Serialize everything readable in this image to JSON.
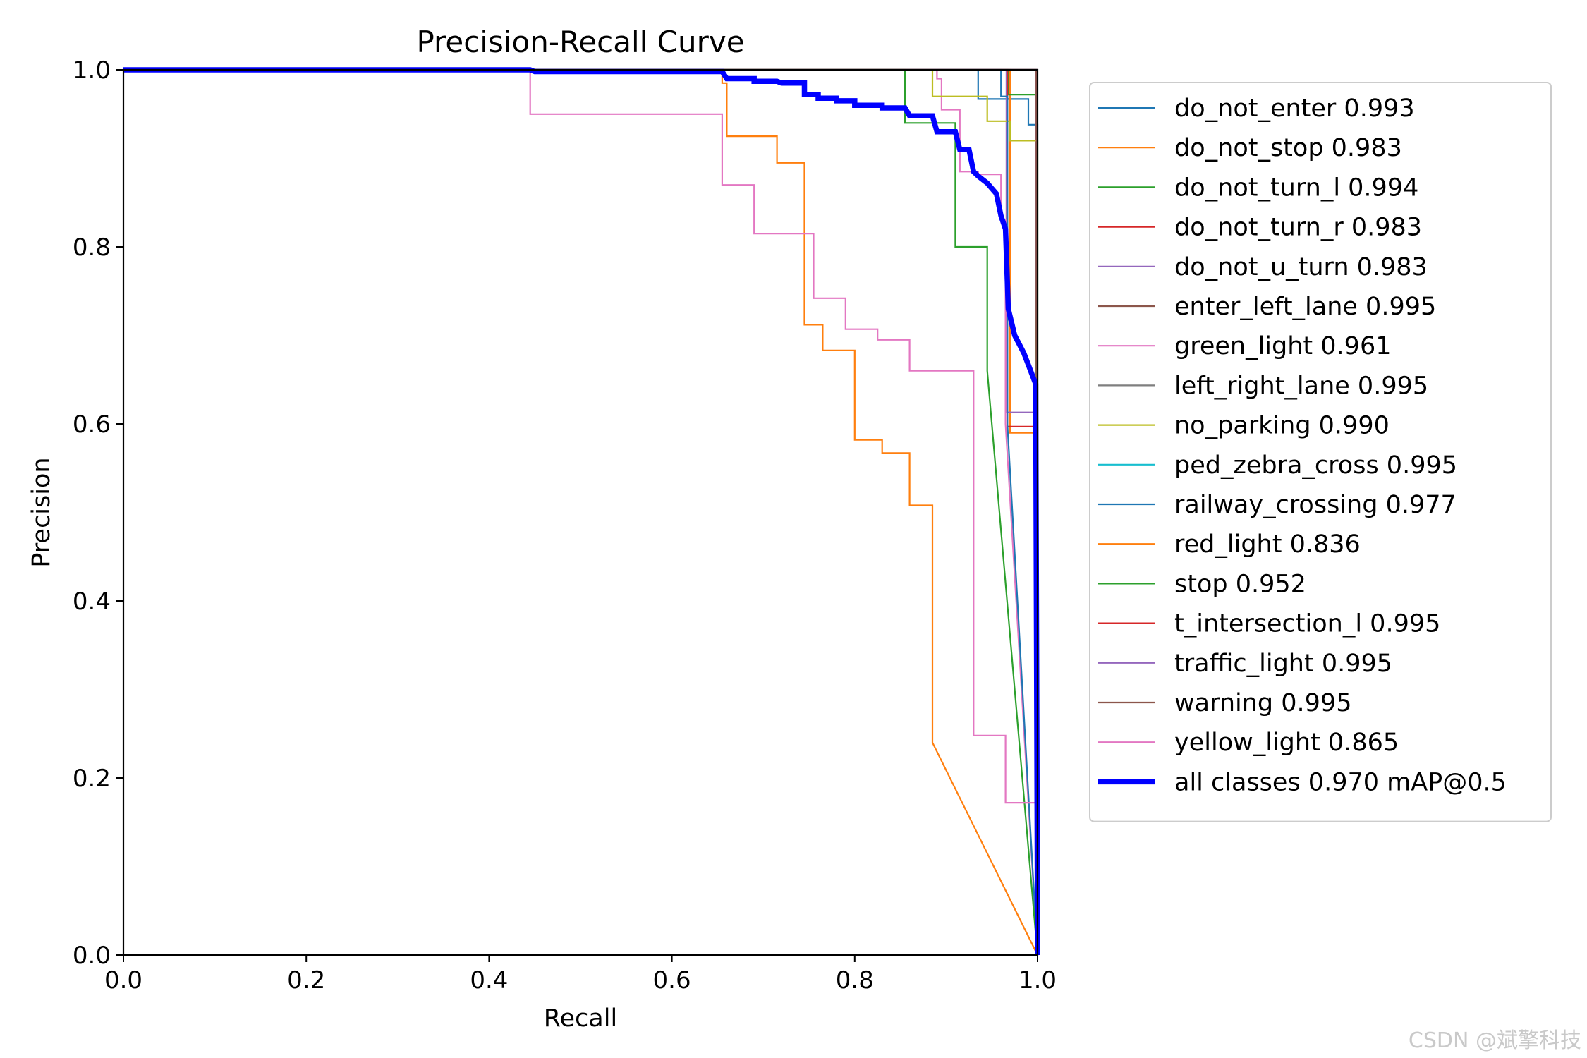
{
  "watermark": "CSDN @斌擎科技",
  "chart_data": {
    "type": "line",
    "title": "Precision-Recall Curve",
    "xlabel": "Recall",
    "ylabel": "Precision",
    "xlim": [
      0,
      1
    ],
    "ylim": [
      0,
      1
    ],
    "xticks": [
      "0.0",
      "0.2",
      "0.4",
      "0.6",
      "0.8",
      "1.0"
    ],
    "yticks": [
      "0.0",
      "0.2",
      "0.4",
      "0.6",
      "0.8",
      "1.0"
    ],
    "legend_position": "outside-right",
    "series": [
      {
        "name": "do_not_enter 0.993",
        "color": "#1f77b4",
        "x": [
          0,
          0.93,
          0.935,
          0.935,
          0.99,
          0.99,
          1.0,
          1.0
        ],
        "y": [
          1,
          1,
          1,
          0.967,
          0.967,
          0.938,
          0.938,
          0
        ]
      },
      {
        "name": "do_not_stop 0.983",
        "color": "#ff7f0e",
        "x": [
          0,
          0.97,
          0.97,
          0.999,
          0.999,
          1.0
        ],
        "y": [
          1,
          1,
          0.59,
          0.59,
          0.59,
          0
        ]
      },
      {
        "name": "do_not_turn_l 0.994",
        "color": "#2ca02c",
        "x": [
          0,
          0.968,
          0.968,
          0.998,
          0.998,
          1.0
        ],
        "y": [
          1,
          1,
          0.972,
          0.972,
          0.972,
          0
        ]
      },
      {
        "name": "do_not_turn_r 0.983",
        "color": "#d62728",
        "x": [
          0,
          0.967,
          0.967,
          0.999,
          0.999,
          1.0
        ],
        "y": [
          1,
          1,
          0.597,
          0.597,
          0.597,
          0
        ]
      },
      {
        "name": "do_not_u_turn 0.983",
        "color": "#9467bd",
        "x": [
          0,
          0.966,
          0.966,
          0.999,
          0.999,
          1.0
        ],
        "y": [
          1,
          1,
          0.613,
          0.613,
          0.613,
          0
        ]
      },
      {
        "name": "enter_left_lane 0.995",
        "color": "#8c564b",
        "x": [
          0,
          0.998,
          0.998,
          1.0
        ],
        "y": [
          1,
          1,
          1,
          0
        ]
      },
      {
        "name": "green_light 0.961",
        "color": "#e377c2",
        "x": [
          0,
          0.89,
          0.89,
          0.895,
          0.895,
          0.915,
          0.915,
          0.935,
          0.935,
          0.96,
          0.96,
          0.965,
          0.965,
          1.0
        ],
        "y": [
          1,
          1,
          0.99,
          0.99,
          0.955,
          0.955,
          0.885,
          0.885,
          0.882,
          0.882,
          0.83,
          0.83,
          0.6,
          0
        ]
      },
      {
        "name": "left_right_lane 0.995",
        "color": "#7f7f7f",
        "x": [
          0,
          0.999,
          0.999,
          1.0
        ],
        "y": [
          1,
          1,
          1,
          0
        ]
      },
      {
        "name": "no_parking 0.990",
        "color": "#bcbd22",
        "x": [
          0,
          0.885,
          0.885,
          0.94,
          0.94,
          0.945,
          0.945,
          0.97,
          0.97,
          1.0,
          1.0
        ],
        "y": [
          1,
          1,
          0.97,
          0.97,
          0.97,
          0.97,
          0.942,
          0.942,
          0.92,
          0.92,
          0
        ]
      },
      {
        "name": "ped_zebra_cross 0.995",
        "color": "#17becf",
        "x": [
          0,
          0.999,
          0.999,
          1.0
        ],
        "y": [
          1,
          1,
          1,
          0
        ]
      },
      {
        "name": "railway_crossing 0.977",
        "color": "#1f77b4",
        "x": [
          0,
          0.96,
          0.96,
          0.967,
          0.967,
          1.0
        ],
        "y": [
          1,
          1,
          0.97,
          0.97,
          0.6,
          0
        ]
      },
      {
        "name": "red_light 0.836",
        "color": "#ff7f0e",
        "x": [
          0,
          0.655,
          0.655,
          0.66,
          0.66,
          0.715,
          0.715,
          0.745,
          0.745,
          0.765,
          0.765,
          0.8,
          0.8,
          0.83,
          0.83,
          0.86,
          0.86,
          0.885,
          0.885,
          1.0
        ],
        "y": [
          1,
          1,
          0.985,
          0.985,
          0.925,
          0.925,
          0.895,
          0.895,
          0.712,
          0.712,
          0.683,
          0.683,
          0.582,
          0.582,
          0.567,
          0.567,
          0.508,
          0.508,
          0.24,
          0
        ]
      },
      {
        "name": "stop 0.952",
        "color": "#2ca02c",
        "x": [
          0,
          0.855,
          0.855,
          0.86,
          0.86,
          0.91,
          0.91,
          0.915,
          0.915,
          0.945,
          0.945,
          1.0
        ],
        "y": [
          1,
          1,
          0.94,
          0.94,
          0.94,
          0.94,
          0.8,
          0.8,
          0.8,
          0.8,
          0.66,
          0
        ]
      },
      {
        "name": "t_intersection_l 0.995",
        "color": "#d62728",
        "x": [
          0,
          0.999,
          0.999,
          1.0
        ],
        "y": [
          1,
          1,
          1,
          0
        ]
      },
      {
        "name": "traffic_light 0.995",
        "color": "#9467bd",
        "x": [
          0,
          0.999,
          0.999,
          1.0
        ],
        "y": [
          1,
          1,
          1,
          0
        ]
      },
      {
        "name": "warning 0.995",
        "color": "#8c564b",
        "x": [
          0,
          0.999,
          0.999,
          1.0
        ],
        "y": [
          1,
          1,
          1,
          0
        ]
      },
      {
        "name": "yellow_light 0.865",
        "color": "#e377c2",
        "x": [
          0,
          0.445,
          0.445,
          0.655,
          0.655,
          0.69,
          0.69,
          0.755,
          0.755,
          0.79,
          0.79,
          0.825,
          0.825,
          0.86,
          0.86,
          0.93,
          0.93,
          0.965,
          0.965,
          0.998,
          0.998,
          1.0
        ],
        "y": [
          1,
          1,
          0.95,
          0.95,
          0.87,
          0.87,
          0.815,
          0.815,
          0.742,
          0.742,
          0.707,
          0.707,
          0.695,
          0.695,
          0.66,
          0.66,
          0.248,
          0.248,
          0.172,
          0.172,
          0.172,
          0
        ]
      },
      {
        "name": "all classes 0.970 mAP@0.5",
        "color": "#0000ff",
        "width": "thick",
        "x": [
          0,
          0.445,
          0.45,
          0.655,
          0.66,
          0.69,
          0.69,
          0.715,
          0.72,
          0.745,
          0.745,
          0.76,
          0.76,
          0.78,
          0.78,
          0.8,
          0.8,
          0.83,
          0.83,
          0.855,
          0.86,
          0.885,
          0.89,
          0.91,
          0.915,
          0.925,
          0.93,
          0.935,
          0.945,
          0.955,
          0.96,
          0.965,
          0.968,
          0.975,
          0.985,
          0.998,
          1.0
        ],
        "y": [
          1,
          1,
          0.998,
          0.998,
          0.99,
          0.99,
          0.987,
          0.987,
          0.985,
          0.985,
          0.972,
          0.972,
          0.968,
          0.968,
          0.965,
          0.965,
          0.96,
          0.96,
          0.957,
          0.957,
          0.948,
          0.948,
          0.93,
          0.93,
          0.91,
          0.91,
          0.885,
          0.88,
          0.872,
          0.86,
          0.835,
          0.82,
          0.73,
          0.7,
          0.68,
          0.645,
          0
        ]
      }
    ]
  }
}
